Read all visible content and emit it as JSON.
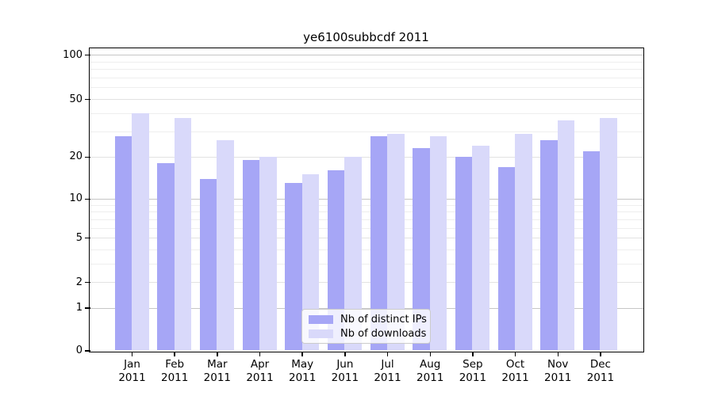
{
  "chart_data": {
    "type": "bar",
    "title": "ye6100subbcdf 2011",
    "year": "2011",
    "categories": [
      "Jan",
      "Feb",
      "Mar",
      "Apr",
      "May",
      "Jun",
      "Jul",
      "Aug",
      "Sep",
      "Oct",
      "Nov",
      "Dec"
    ],
    "series": [
      {
        "name": "Nb of distinct IPs",
        "color": "#a6a6f6",
        "values": [
          28,
          18,
          14,
          19,
          13,
          16,
          28,
          23,
          20,
          17,
          26,
          22
        ]
      },
      {
        "name": "Nb of downloads",
        "color": "#d9d9fa",
        "values": [
          40,
          37,
          26,
          20,
          15,
          20,
          29,
          28,
          24,
          29,
          36,
          37
        ]
      }
    ],
    "yticks": [
      0,
      1,
      2,
      5,
      10,
      20,
      50,
      100
    ],
    "ylim": [
      0,
      117
    ],
    "yscale": "log10(value+1), linear-anchored at 0",
    "grid": {
      "major_lines": [
        100,
        10,
        1
      ],
      "mid_lines": [
        50,
        20,
        5,
        2
      ],
      "minor_lines": [
        90,
        80,
        70,
        60,
        40,
        30,
        9,
        8,
        7,
        6,
        4,
        3
      ]
    },
    "legend": {
      "position": "bottom-center-inside",
      "entries": [
        "Nb of distinct IPs",
        "Nb of downloads"
      ]
    }
  }
}
